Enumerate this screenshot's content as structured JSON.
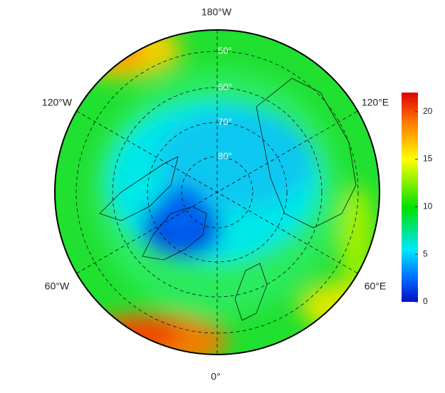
{
  "map": {
    "longitude_labels": [
      "180°W",
      "120°E",
      "60°E",
      "0°",
      "60°W",
      "120°W"
    ],
    "latitude_labels": [
      "50°",
      "60°",
      "70°",
      "80°"
    ]
  },
  "colorbar": {
    "lim": [
      0,
      22
    ],
    "ticks": [
      0,
      5,
      10,
      15,
      20
    ]
  }
}
